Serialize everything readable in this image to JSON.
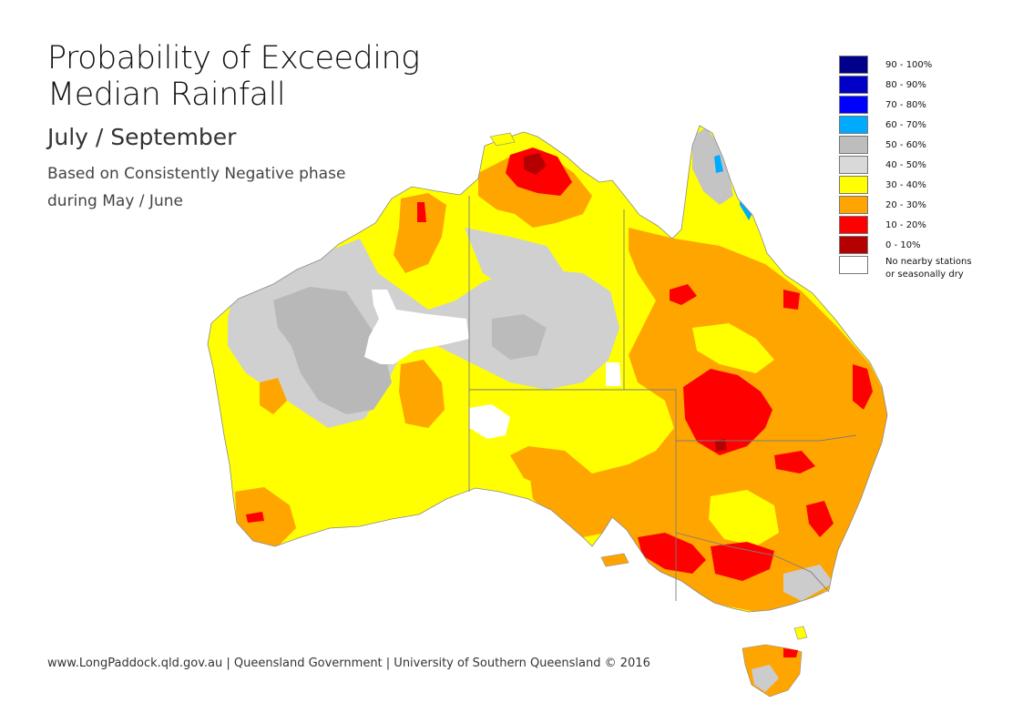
{
  "title": {
    "line1": "Probability of Exceeding",
    "line2": "Median Rainfall"
  },
  "subtitle": "July / September",
  "description": {
    "line1": "Based on Consistently Negative phase",
    "line2": "during May / June"
  },
  "legend": {
    "items": [
      {
        "label": "90 - 100%",
        "color": "#00008b"
      },
      {
        "label": "80 - 90%",
        "color": "#0000c8"
      },
      {
        "label": "70 - 80%",
        "color": "#0000ff"
      },
      {
        "label": "60 - 70%",
        "color": "#00aaff"
      },
      {
        "label": "50 - 60%",
        "color": "#bdbdbd"
      },
      {
        "label": "40 - 50%",
        "color": "#d9d9d9"
      },
      {
        "label": "30 - 40%",
        "color": "#ffff00"
      },
      {
        "label": "20 - 30%",
        "color": "#ffa500"
      },
      {
        "label": "10 - 20%",
        "color": "#ff0000"
      },
      {
        "label": "0 - 10%",
        "color": "#b40000"
      }
    ],
    "no_data": {
      "line1": "No nearby stations",
      "line2": "or seasonally dry",
      "color": "#ffffff"
    }
  },
  "footer": "www.LongPaddock.qld.gov.au | Queensland Government | University of Southern Queensland © 2016"
}
